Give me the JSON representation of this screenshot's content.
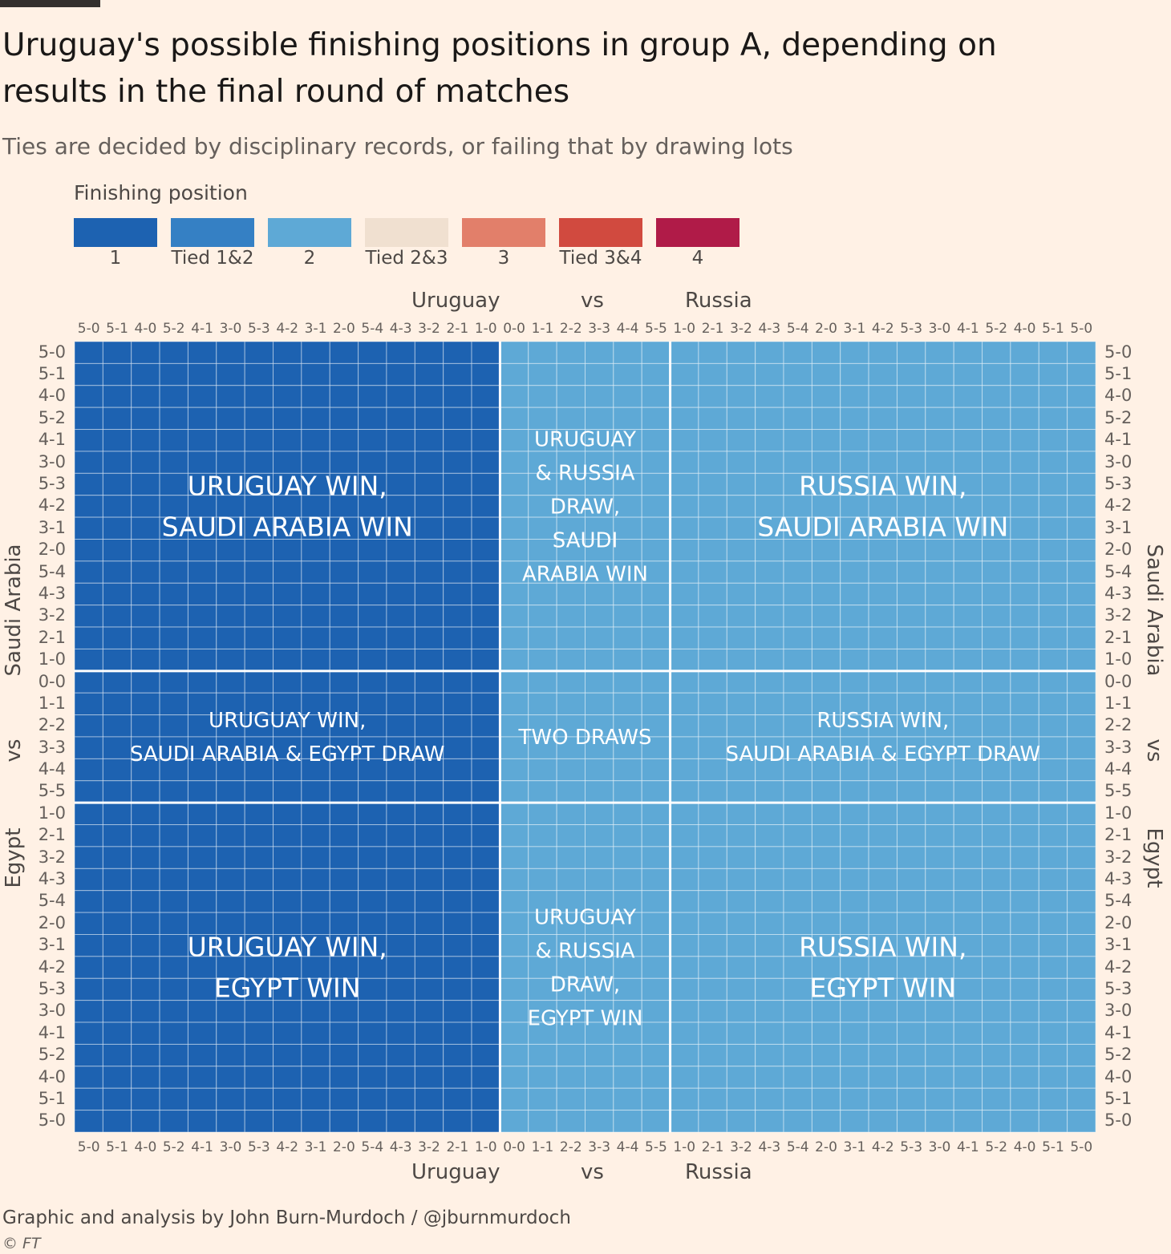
{
  "title": "Uruguay's possible finishing positions in group A, depending on results in the final round of matches",
  "subtitle": "Ties are decided by disciplinary records, or failing that by drawing lots",
  "legend": {
    "title": "Finishing position",
    "items": [
      {
        "label": "1",
        "color": "#1d62b1"
      },
      {
        "label": "Tied 1&2",
        "color": "#3580c4"
      },
      {
        "label": "2",
        "color": "#5ea9d6"
      },
      {
        "label": "Tied 2&3",
        "color": "#f0e0d0"
      },
      {
        "label": "3",
        "color": "#e27f6a"
      },
      {
        "label": "Tied 3&4",
        "color": "#d14a3f"
      },
      {
        "label": "4",
        "color": "#b01b48"
      }
    ]
  },
  "axes": {
    "top": {
      "home": "Uruguay",
      "vs": "vs",
      "away": "Russia"
    },
    "bottom": {
      "home": "Uruguay",
      "vs": "vs",
      "away": "Russia"
    },
    "left": {
      "home": "Saudi Arabia",
      "vs": "vs",
      "away": "Egypt"
    },
    "right": {
      "home": "Saudi Arabia",
      "vs": "vs",
      "away": "Egypt"
    }
  },
  "source": "Graphic and analysis by John Burn-Murdoch / @jburnmurdoch",
  "copyright": "© FT",
  "chart_data": {
    "type": "heatmap",
    "title": "Uruguay's possible finishing positions in group A, depending on results in the final round of matches",
    "x_match": "Uruguay vs Russia",
    "y_match": "Saudi Arabia vs Egypt",
    "x_categories": [
      "5-0",
      "5-1",
      "4-0",
      "5-2",
      "4-1",
      "3-0",
      "5-3",
      "4-2",
      "3-1",
      "2-0",
      "5-4",
      "4-3",
      "3-2",
      "2-1",
      "1-0",
      "0-0",
      "1-1",
      "2-2",
      "3-3",
      "4-4",
      "5-5",
      "1-0",
      "2-1",
      "3-2",
      "4-3",
      "5-4",
      "2-0",
      "3-1",
      "4-2",
      "5-3",
      "3-0",
      "4-1",
      "5-2",
      "4-0",
      "5-1",
      "5-0"
    ],
    "y_categories": [
      "5-0",
      "5-1",
      "4-0",
      "5-2",
      "4-1",
      "3-0",
      "5-3",
      "4-2",
      "3-1",
      "2-0",
      "5-4",
      "4-3",
      "3-2",
      "2-1",
      "1-0",
      "0-0",
      "1-1",
      "2-2",
      "3-3",
      "4-4",
      "5-5",
      "1-0",
      "2-1",
      "3-2",
      "4-3",
      "5-4",
      "2-0",
      "3-1",
      "4-2",
      "5-3",
      "3-0",
      "4-1",
      "5-2",
      "4-0",
      "5-1",
      "5-0"
    ],
    "x_groups": [
      {
        "result": "Uruguay win",
        "count": 15
      },
      {
        "result": "Draw",
        "count": 6
      },
      {
        "result": "Russia win",
        "count": 15
      }
    ],
    "y_groups": [
      {
        "result": "Saudi Arabia win",
        "count": 15
      },
      {
        "result": "Draw",
        "count": 6
      },
      {
        "result": "Egypt win",
        "count": 15
      }
    ],
    "block_positions": [
      [
        "1",
        "2",
        "2"
      ],
      [
        "1",
        "2",
        "2"
      ],
      [
        "1",
        "2",
        "2"
      ]
    ],
    "annotations": [
      {
        "col": 0,
        "row": 0,
        "lines": [
          "URUGUAY WIN,",
          "SAUDI ARABIA WIN"
        ]
      },
      {
        "col": 1,
        "row": 0,
        "lines": [
          "URUGUAY",
          "& RUSSIA",
          "DRAW,",
          "SAUDI",
          "ARABIA WIN"
        ]
      },
      {
        "col": 2,
        "row": 0,
        "lines": [
          "RUSSIA WIN,",
          "SAUDI ARABIA WIN"
        ]
      },
      {
        "col": 0,
        "row": 1,
        "lines": [
          "URUGUAY WIN,",
          "SAUDI ARABIA & EGYPT DRAW"
        ]
      },
      {
        "col": 1,
        "row": 1,
        "lines": [
          "TWO DRAWS"
        ]
      },
      {
        "col": 2,
        "row": 1,
        "lines": [
          "RUSSIA WIN,",
          "SAUDI ARABIA & EGYPT DRAW"
        ]
      },
      {
        "col": 0,
        "row": 2,
        "lines": [
          "URUGUAY WIN,",
          "EGYPT WIN"
        ]
      },
      {
        "col": 1,
        "row": 2,
        "lines": [
          "URUGUAY",
          "& RUSSIA",
          "DRAW,",
          "EGYPT WIN"
        ]
      },
      {
        "col": 2,
        "row": 2,
        "lines": [
          "RUSSIA WIN,",
          "EGYPT WIN"
        ]
      }
    ]
  }
}
